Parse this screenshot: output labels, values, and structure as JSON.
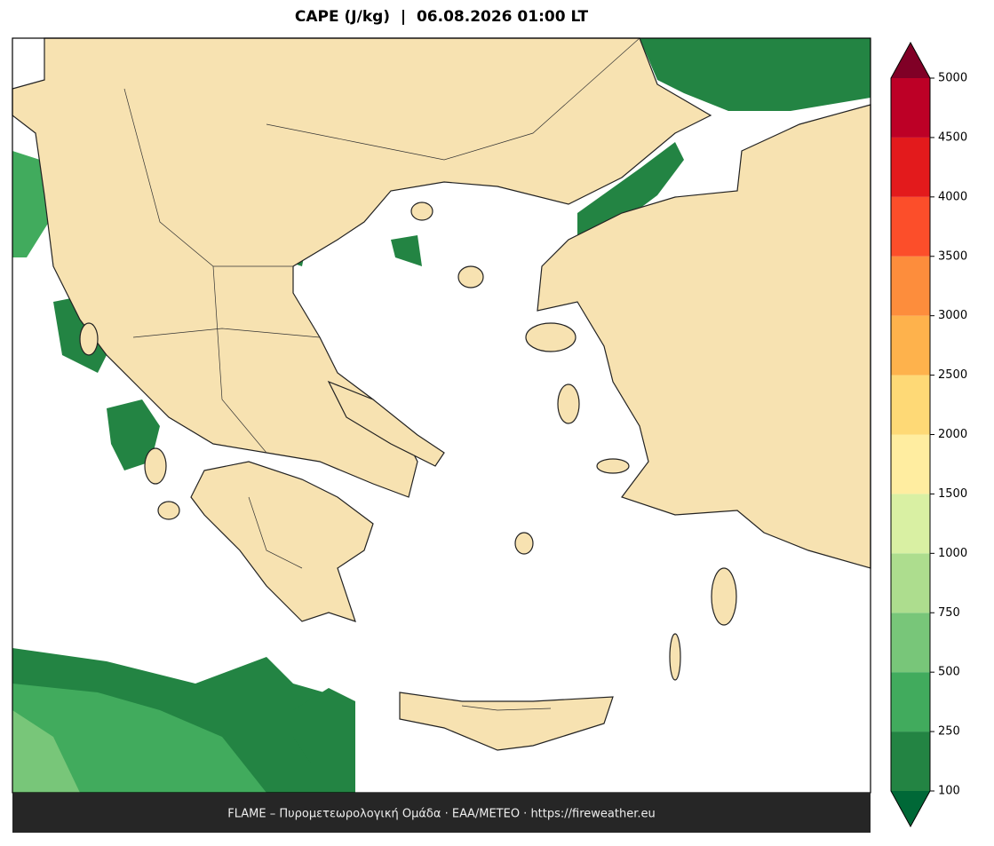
{
  "title": "CAPE (J/kg)  |  06.08.2026 01:00 LT",
  "colorbar": {
    "ticks": [
      100,
      250,
      500,
      750,
      1000,
      1500,
      2000,
      2500,
      3000,
      3500,
      4000,
      4500,
      5000
    ],
    "colors": [
      "#238443",
      "#41ab5d",
      "#78c679",
      "#addd8e",
      "#d9f0a3",
      "#ffeda0",
      "#fed976",
      "#feb24c",
      "#fd8d3c",
      "#fc4e2a",
      "#e31a1c",
      "#bd0026"
    ],
    "under_color": "#006837",
    "over_color": "#800026"
  },
  "footer": "FLAME – Πυρομετεωρολογική Ομάδα · ΕΑΑ/METEO · https://fireweather.eu"
}
